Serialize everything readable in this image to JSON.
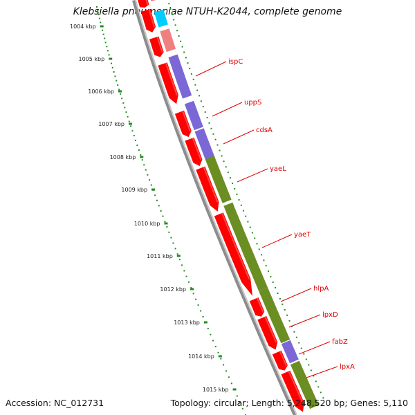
{
  "title": "Klebsiella pneumoniae NTUH-K2044, complete genome",
  "accession": "Accession: NC_012731",
  "stats": "Topology: circular; Length: 5,248,520 bp; Genes: 5,110",
  "scale_labels": [
    "1004 kbp",
    "1005 kbp",
    "1006 kbp",
    "1007 kbp",
    "1008 kbp",
    "1009 kbp",
    "1010 kbp",
    "1011 kbp",
    "1012 kbp",
    "1013 kbp",
    "1014 kbp",
    "1015 kbp"
  ],
  "gene_labels": [
    "ispC",
    "uppS",
    "cdsA",
    "yaeL",
    "yaeT",
    "hlpA",
    "lpxD",
    "fabZ",
    "lpxA"
  ],
  "colors": {
    "cds_red": "#ff0000",
    "cds_pink": "#f08080",
    "cds_cyan": "#00ccff",
    "cog_purple": "#7b68d6",
    "cog_olive": "#6b8e23",
    "backbone": "#8c8c8c",
    "scale": "#228b22",
    "label_line": "#e00000"
  }
}
